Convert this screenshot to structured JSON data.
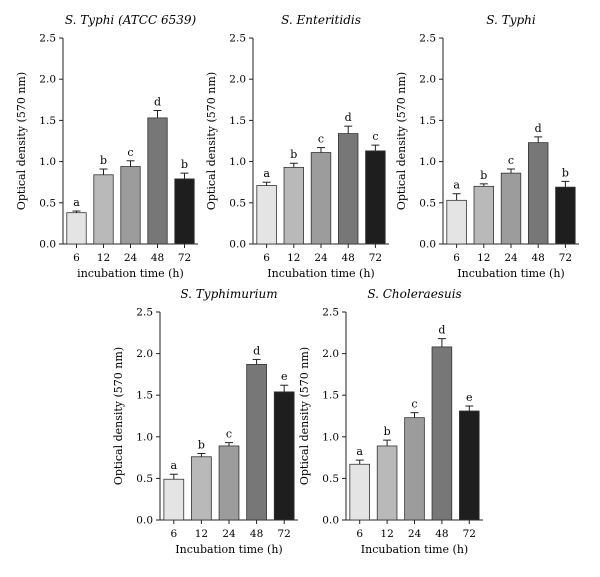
{
  "colors": [
    "#e4e4e4",
    "#b9b9b9",
    "#9c9c9c",
    "#777777",
    "#1e1e1e"
  ],
  "chart_data": [
    {
      "type": "bar",
      "title": "S. Typhi (ATCC 6539)",
      "xlabel": "incubation time (h)",
      "ylabel": "Optical density (570 nm)",
      "categories": [
        "6",
        "12",
        "24",
        "48",
        "72"
      ],
      "values": [
        0.38,
        0.84,
        0.94,
        1.53,
        0.79
      ],
      "errors": [
        0.02,
        0.07,
        0.07,
        0.09,
        0.07
      ],
      "letters": [
        "a",
        "b",
        "c",
        "d",
        "b"
      ],
      "ylim": [
        0,
        2.5
      ],
      "yticks": [
        "0.0",
        "0.5",
        "1.0",
        "1.5",
        "2.0",
        "2.5"
      ]
    },
    {
      "type": "bar",
      "title": "S. Enteritidis",
      "xlabel": "Incubation time (h)",
      "ylabel": "Optical density (570 nm)",
      "categories": [
        "6",
        "12",
        "24",
        "48",
        "72"
      ],
      "values": [
        0.71,
        0.93,
        1.11,
        1.34,
        1.13
      ],
      "errors": [
        0.04,
        0.05,
        0.06,
        0.09,
        0.07
      ],
      "letters": [
        "a",
        "b",
        "c",
        "d",
        "c"
      ],
      "ylim": [
        0,
        2.5
      ],
      "yticks": [
        "0.0",
        "0.5",
        "1.0",
        "1.5",
        "2.0",
        "2.5"
      ]
    },
    {
      "type": "bar",
      "title": "S. Typhi",
      "xlabel": "Incubation time (h)",
      "ylabel": "Optical density (570 nm)",
      "categories": [
        "6",
        "12",
        "24",
        "48",
        "72"
      ],
      "values": [
        0.53,
        0.7,
        0.86,
        1.23,
        0.69
      ],
      "errors": [
        0.08,
        0.03,
        0.05,
        0.07,
        0.07
      ],
      "letters": [
        "a",
        "b",
        "c",
        "d",
        "b"
      ],
      "ylim": [
        0,
        2.5
      ],
      "yticks": [
        "0.0",
        "0.5",
        "1.0",
        "1.5",
        "2.0",
        "2.5"
      ]
    },
    {
      "type": "bar",
      "title": "S. Typhimurium",
      "xlabel": "Incubation time (h)",
      "ylabel": "Optical density (570 nm)",
      "categories": [
        "6",
        "12",
        "24",
        "48",
        "72"
      ],
      "values": [
        0.49,
        0.76,
        0.89,
        1.87,
        1.54
      ],
      "errors": [
        0.06,
        0.04,
        0.04,
        0.06,
        0.08
      ],
      "letters": [
        "a",
        "b",
        "c",
        "d",
        "e"
      ],
      "ylim": [
        0,
        2.5
      ],
      "yticks": [
        "0.0",
        "0.5",
        "1.0",
        "1.5",
        "2.0",
        "2.5"
      ]
    },
    {
      "type": "bar",
      "title": "S. Choleraesuis",
      "xlabel": "Incubation time (h)",
      "ylabel": "Optical density (570 nm)",
      "categories": [
        "6",
        "12",
        "24",
        "48",
        "72"
      ],
      "values": [
        0.67,
        0.89,
        1.23,
        2.08,
        1.31
      ],
      "errors": [
        0.05,
        0.07,
        0.06,
        0.1,
        0.06
      ],
      "letters": [
        "a",
        "b",
        "c",
        "d",
        "e"
      ],
      "ylim": [
        0,
        2.5
      ],
      "yticks": [
        "0.0",
        "0.5",
        "1.0",
        "1.5",
        "2.0",
        "2.5"
      ]
    }
  ]
}
